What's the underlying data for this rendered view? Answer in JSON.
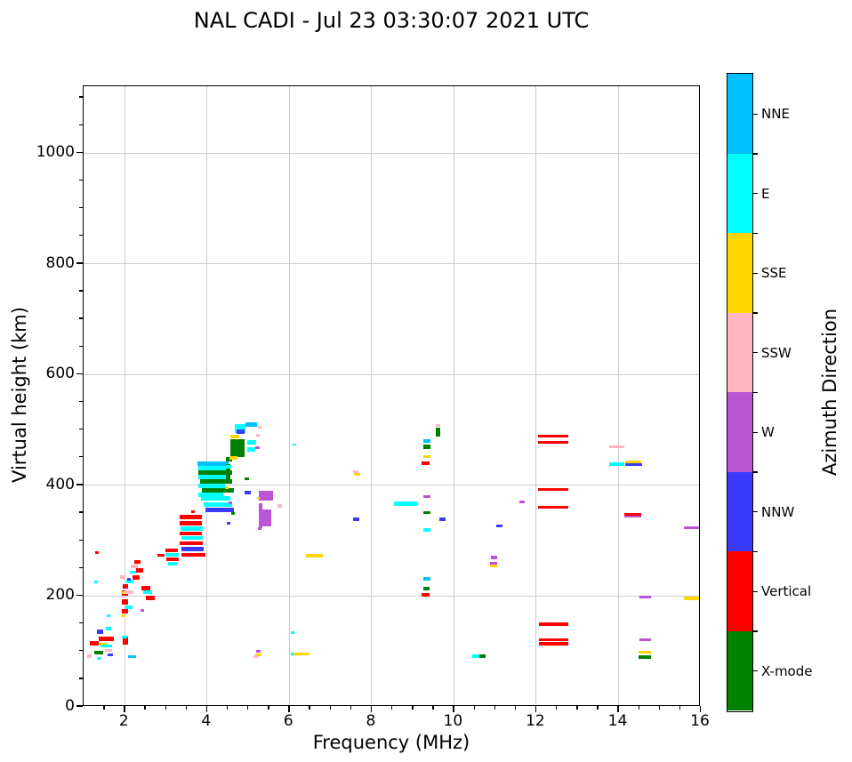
{
  "page": {
    "title": "NAL CADI - Jul 23 03:30:07 2021 UTC"
  },
  "chart_data": {
    "type": "scatter",
    "title": "NAL CADI - Jul 23 03:30:07 2021 UTC",
    "xlabel": "Frequency (MHz)",
    "ylabel": "Virtual height (km)",
    "xlim": [
      1,
      16
    ],
    "ylim": [
      0,
      1121
    ],
    "x_major_ticks": [
      2,
      4,
      6,
      8,
      10,
      12,
      14,
      16
    ],
    "x_minor_step": 0.5,
    "y_major_ticks": [
      0,
      200,
      400,
      600,
      800,
      1000
    ],
    "y_minor_step": 50,
    "grid": true,
    "grid_color": "#cccccc",
    "colorbar": {
      "title": "Azimuth Direction",
      "segments_top_to_bottom": [
        {
          "label": "NNE",
          "color": "#00BFFF"
        },
        {
          "label": "E",
          "color": "#00FFFF"
        },
        {
          "label": "SSE",
          "color": "#FFD700"
        },
        {
          "label": "SSW",
          "color": "#FFB6C1"
        },
        {
          "label": "W",
          "color": "#BA55D3"
        },
        {
          "label": "NNW",
          "color": "#3C3AFA"
        },
        {
          "label": "Vertical",
          "color": "#FF0000"
        },
        {
          "label": "X-mode",
          "color": "#008000"
        }
      ]
    },
    "points_format": [
      "freq_mhz_left",
      "height_km_center",
      "width_mhz",
      "thickness_km",
      "direction"
    ],
    "points": [
      [
        1.08,
        91,
        0.12,
        6,
        "SSW"
      ],
      [
        1.15,
        115,
        0.22,
        7,
        "Vertical"
      ],
      [
        1.32,
        136,
        0.16,
        8,
        "NNW"
      ],
      [
        1.54,
        141,
        0.12,
        6,
        "E"
      ],
      [
        1.37,
        123,
        0.37,
        8,
        "Vertical"
      ],
      [
        1.37,
        113,
        0.22,
        5,
        "SSE"
      ],
      [
        1.41,
        110,
        0.28,
        5,
        "E"
      ],
      [
        1.26,
        98,
        0.22,
        6,
        "X-mode"
      ],
      [
        1.52,
        102,
        0.17,
        5,
        "SSW"
      ],
      [
        1.58,
        94,
        0.13,
        5,
        "NNW"
      ],
      [
        1.32,
        88,
        0.09,
        5,
        "E"
      ],
      [
        2.08,
        91,
        0.2,
        5,
        "NNE"
      ],
      [
        1.95,
        120,
        0.13,
        14,
        "Vertical"
      ],
      [
        1.93,
        126,
        0.13,
        5,
        "E"
      ],
      [
        1.56,
        165,
        0.09,
        5,
        "E"
      ],
      [
        1.28,
        278,
        0.09,
        5,
        "Vertical"
      ],
      [
        1.26,
        226,
        0.09,
        5,
        "E"
      ],
      [
        1.93,
        172,
        0.15,
        8,
        "Vertical"
      ],
      [
        1.93,
        190,
        0.15,
        10,
        "Vertical"
      ],
      [
        1.93,
        205,
        0.15,
        10,
        "Vertical"
      ],
      [
        1.95,
        218,
        0.13,
        8,
        "Vertical"
      ],
      [
        2.02,
        180,
        0.17,
        6,
        "E"
      ],
      [
        2.0,
        207,
        0.22,
        7,
        "SSW"
      ],
      [
        1.93,
        165,
        0.09,
        5,
        "SSE"
      ],
      [
        1.89,
        234,
        0.13,
        7,
        "SSW"
      ],
      [
        2.04,
        226,
        0.17,
        6,
        "E"
      ],
      [
        2.19,
        233,
        0.17,
        8,
        "Vertical"
      ],
      [
        2.28,
        247,
        0.17,
        8,
        "Vertical"
      ],
      [
        2.15,
        254,
        0.17,
        6,
        "SSW"
      ],
      [
        2.23,
        262,
        0.15,
        7,
        "Vertical"
      ],
      [
        2.13,
        243,
        0.15,
        5,
        "E"
      ],
      [
        2.41,
        215,
        0.21,
        8,
        "Vertical"
      ],
      [
        2.45,
        207,
        0.21,
        6,
        "E"
      ],
      [
        2.51,
        196,
        0.21,
        8,
        "Vertical"
      ],
      [
        2.39,
        174,
        0.09,
        5,
        "W"
      ],
      [
        2.06,
        231,
        0.09,
        5,
        "NNW"
      ],
      [
        1.91,
        206,
        0.09,
        5,
        "SSE"
      ],
      [
        2.99,
        283,
        0.3,
        7,
        "Vertical"
      ],
      [
        2.99,
        275,
        0.32,
        7,
        "E"
      ],
      [
        3.01,
        267,
        0.3,
        7,
        "Vertical"
      ],
      [
        3.06,
        259,
        0.21,
        6,
        "E"
      ],
      [
        2.8,
        274,
        0.17,
        6,
        "Vertical"
      ],
      [
        3.34,
        343,
        0.54,
        8,
        "Vertical"
      ],
      [
        3.34,
        332,
        0.54,
        8,
        "Vertical"
      ],
      [
        3.36,
        322,
        0.54,
        7,
        "E"
      ],
      [
        3.34,
        313,
        0.54,
        7,
        "Vertical"
      ],
      [
        3.38,
        305,
        0.52,
        7,
        "E"
      ],
      [
        3.34,
        295,
        0.56,
        7,
        "Vertical"
      ],
      [
        3.38,
        285,
        0.54,
        7,
        "NNW"
      ],
      [
        3.38,
        275,
        0.58,
        7,
        "Vertical"
      ],
      [
        3.62,
        352,
        0.09,
        5,
        "Vertical"
      ],
      [
        3.86,
        376,
        0.71,
        8,
        "E"
      ],
      [
        3.92,
        365,
        0.69,
        8,
        "E"
      ],
      [
        3.97,
        356,
        0.69,
        8,
        "NNW"
      ],
      [
        4.53,
        368,
        0.09,
        5,
        "W"
      ],
      [
        4.59,
        350,
        0.09,
        5,
        "X-mode"
      ],
      [
        4.48,
        331,
        0.09,
        5,
        "NNW"
      ],
      [
        3.77,
        439,
        0.76,
        7,
        "NNE"
      ],
      [
        3.79,
        431,
        0.78,
        7,
        "E"
      ],
      [
        3.79,
        423,
        0.82,
        7,
        "X-mode"
      ],
      [
        3.79,
        415,
        0.74,
        7,
        "E"
      ],
      [
        3.84,
        407,
        0.78,
        7,
        "X-mode"
      ],
      [
        3.79,
        399,
        0.65,
        7,
        "E"
      ],
      [
        3.88,
        391,
        0.78,
        7,
        "X-mode"
      ],
      [
        3.79,
        383,
        0.61,
        7,
        "E"
      ],
      [
        4.46,
        447,
        0.15,
        8,
        "X-mode"
      ],
      [
        4.46,
        425,
        0.11,
        28,
        "X-mode"
      ],
      [
        4.57,
        467,
        0.35,
        32,
        "X-mode"
      ],
      [
        4.57,
        488,
        0.21,
        6,
        "SSE"
      ],
      [
        4.68,
        503,
        0.26,
        16,
        "E"
      ],
      [
        4.94,
        510,
        0.28,
        7,
        "NNE"
      ],
      [
        4.72,
        497,
        0.19,
        7,
        "NNW"
      ],
      [
        5.2,
        491,
        0.09,
        5,
        "SSW"
      ],
      [
        4.98,
        478,
        0.21,
        7,
        "E"
      ],
      [
        4.98,
        465,
        0.19,
        7,
        "E"
      ],
      [
        5.18,
        468,
        0.09,
        5,
        "W"
      ],
      [
        5.24,
        505,
        0.09,
        5,
        "SSW"
      ],
      [
        4.55,
        450,
        0.19,
        6,
        "SSE"
      ],
      [
        4.46,
        434,
        0.13,
        7,
        "E"
      ],
      [
        4.44,
        396,
        0.09,
        5,
        "SSE"
      ],
      [
        6.08,
        474,
        0.09,
        4,
        "E"
      ],
      [
        5.26,
        382,
        0.35,
        18,
        "W"
      ],
      [
        5.26,
        345,
        0.09,
        45,
        "W"
      ],
      [
        5.33,
        341,
        0.24,
        30,
        "W"
      ],
      [
        5.22,
        376,
        0.07,
        5,
        "SSE"
      ],
      [
        5.72,
        363,
        0.09,
        5,
        "SSW"
      ],
      [
        5.24,
        322,
        0.09,
        5,
        "W"
      ],
      [
        4.92,
        387,
        0.15,
        6,
        "NNW"
      ],
      [
        4.92,
        412,
        0.09,
        5,
        "X-mode"
      ],
      [
        5.2,
        100,
        0.11,
        5,
        "W"
      ],
      [
        5.18,
        94,
        0.15,
        6,
        "SSE"
      ],
      [
        5.13,
        91,
        0.11,
        5,
        "SSW"
      ],
      [
        6.04,
        95,
        0.09,
        5,
        "E"
      ],
      [
        6.11,
        95,
        0.37,
        5,
        "SSE"
      ],
      [
        6.04,
        134,
        0.09,
        5,
        "E"
      ],
      [
        6.41,
        273,
        0.41,
        6,
        "SSE"
      ],
      [
        7.54,
        425,
        0.13,
        5,
        "SSW"
      ],
      [
        7.56,
        420,
        0.17,
        6,
        "SSE"
      ],
      [
        7.54,
        339,
        0.17,
        6,
        "NNW"
      ],
      [
        8.55,
        367,
        0.56,
        7,
        "E"
      ],
      [
        9.25,
        480,
        0.17,
        6,
        "NNE"
      ],
      [
        9.25,
        470,
        0.19,
        9,
        "X-mode"
      ],
      [
        9.25,
        452,
        0.17,
        6,
        "SSE"
      ],
      [
        9.22,
        440,
        0.19,
        6,
        "Vertical"
      ],
      [
        9.25,
        380,
        0.17,
        6,
        "W"
      ],
      [
        9.25,
        351,
        0.17,
        6,
        "X-mode"
      ],
      [
        9.25,
        320,
        0.17,
        6,
        "E"
      ],
      [
        9.25,
        231,
        0.17,
        6,
        "NNE"
      ],
      [
        9.25,
        214,
        0.15,
        6,
        "X-mode"
      ],
      [
        9.22,
        202,
        0.19,
        6,
        "Vertical"
      ],
      [
        9.55,
        509,
        0.11,
        5,
        "SSW"
      ],
      [
        9.55,
        498,
        0.11,
        11,
        "X-mode"
      ],
      [
        9.55,
        491,
        0.11,
        5,
        "X-mode"
      ],
      [
        9.64,
        339,
        0.15,
        6,
        "NNW"
      ],
      [
        10.44,
        92,
        0.17,
        6,
        "E"
      ],
      [
        10.61,
        92,
        0.17,
        6,
        "X-mode"
      ],
      [
        10.89,
        270,
        0.15,
        6,
        "W"
      ],
      [
        10.87,
        259,
        0.17,
        5,
        "W"
      ],
      [
        10.87,
        254,
        0.17,
        5,
        "SSE"
      ],
      [
        11.02,
        327,
        0.17,
        6,
        "NNW"
      ],
      [
        11.58,
        370,
        0.15,
        6,
        "W"
      ],
      [
        12.04,
        489,
        0.74,
        6,
        "Vertical"
      ],
      [
        12.04,
        478,
        0.74,
        5,
        "Vertical"
      ],
      [
        12.04,
        392,
        0.74,
        5,
        "Vertical"
      ],
      [
        12.04,
        361,
        0.74,
        5,
        "Vertical"
      ],
      [
        12.06,
        149,
        0.72,
        6,
        "Vertical"
      ],
      [
        12.06,
        121,
        0.72,
        4,
        "Vertical"
      ],
      [
        12.06,
        114,
        0.72,
        5,
        "Vertical"
      ],
      [
        13.77,
        470,
        0.37,
        5,
        "SSW"
      ],
      [
        13.77,
        439,
        0.37,
        6,
        "E"
      ],
      [
        14.16,
        443,
        0.39,
        5,
        "SSE"
      ],
      [
        14.16,
        438,
        0.41,
        5,
        "NNW"
      ],
      [
        14.14,
        347,
        0.41,
        5,
        "Vertical"
      ],
      [
        14.14,
        344,
        0.41,
        4,
        "W"
      ],
      [
        14.5,
        199,
        0.3,
        5,
        "W"
      ],
      [
        14.5,
        121,
        0.28,
        5,
        "W"
      ],
      [
        14.48,
        99,
        0.3,
        5,
        "SSE"
      ],
      [
        14.48,
        90,
        0.3,
        5,
        "X-mode"
      ],
      [
        15.59,
        324,
        0.39,
        5,
        "W"
      ],
      [
        15.59,
        196,
        0.39,
        6,
        "SSE"
      ]
    ]
  }
}
